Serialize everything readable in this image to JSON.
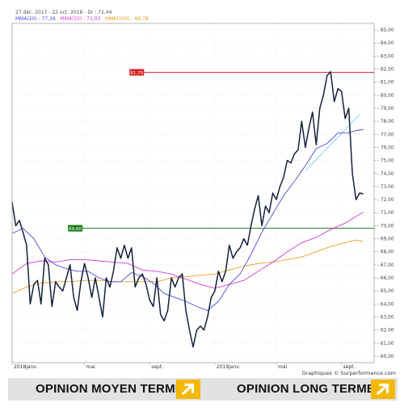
{
  "header": {
    "range": "27 déc. 2017 - 22 oct. 2018 - Dr : 72,44",
    "legend": [
      {
        "label": "MMA(20) : 77,36",
        "color": "#4b4bd2"
      },
      {
        "label": "MMA(50) : 71,03",
        "color": "#d43bd4"
      },
      {
        "label": "MMA(100) : 68,78",
        "color": "#e4a020"
      }
    ]
  },
  "credit": "Graphiques © Surperformance.com",
  "opinions": {
    "medium_label": "OPINION MOYEN TERME",
    "long_label": "OPINION LONG TERME",
    "medium_icon": "arrow-up-right-icon",
    "long_icon": "arrow-up-right-icon",
    "accent": "#f5b800"
  },
  "chart_data": {
    "type": "line",
    "ylim": [
      59.5,
      85.5
    ],
    "xlim": [
      0,
      100
    ],
    "yticks": [
      60,
      61,
      62,
      63,
      64,
      65,
      66,
      67,
      68,
      69,
      70,
      71,
      72,
      73,
      74,
      75,
      76,
      77,
      78,
      79,
      80,
      81,
      82,
      83,
      84,
      85
    ],
    "ytick_labels": [
      "60,00",
      "61,00",
      "62,00",
      "63,00",
      "64,00",
      "65,00",
      "66,00",
      "67,00",
      "68,00",
      "69,00",
      "70,00",
      "71,00",
      "72,00",
      "73,00",
      "74,00",
      "75,00",
      "76,00",
      "77,00",
      "78,00",
      "79,00",
      "80,00",
      "81,00",
      "82,00",
      "83,00",
      "84,00",
      "85,00"
    ],
    "xticks": [
      {
        "x": 0,
        "label": "2018janv."
      },
      {
        "x": 20,
        "label": "mai"
      },
      {
        "x": 38,
        "label": "sept."
      },
      {
        "x": 56,
        "label": "2019janv."
      },
      {
        "x": 73,
        "label": "mai"
      },
      {
        "x": 91,
        "label": "sept."
      }
    ],
    "grid": true,
    "hlines": [
      {
        "y": 81.75,
        "label": "81,75",
        "color": "#d42020",
        "x_start": 36
      },
      {
        "y": 69.8,
        "label": "69,80",
        "color": "#1a7a1a",
        "x_start": 19
      }
    ],
    "series": [
      {
        "color": "#14203a",
        "width": 1.5,
        "x": [
          0,
          1,
          2,
          3,
          4,
          5,
          6,
          7,
          8,
          9,
          10,
          11,
          12,
          13,
          14,
          15,
          16,
          17,
          18,
          19,
          20,
          21,
          22,
          23,
          24,
          25,
          26,
          27,
          28,
          29,
          30,
          31,
          32,
          33,
          34,
          35,
          36,
          37,
          38,
          39,
          40,
          41,
          42,
          43,
          44,
          45,
          46,
          47,
          48,
          49,
          50,
          51,
          52,
          53,
          54,
          55,
          56,
          57,
          58,
          59,
          60,
          61,
          62,
          63,
          64,
          65,
          66,
          67,
          68,
          69,
          70,
          71,
          72,
          73,
          74,
          75,
          76,
          77,
          78,
          79,
          80,
          81,
          82,
          83,
          84,
          85,
          86,
          87,
          88,
          89,
          90,
          91,
          92,
          93,
          94,
          95,
          96,
          97
        ],
        "values": [
          71.8,
          70,
          70.4,
          69.5,
          68.5,
          64,
          65.5,
          65.8,
          64,
          67.5,
          67,
          63.8,
          65.7,
          65.3,
          65,
          66,
          67,
          64.5,
          63.5,
          65.7,
          67.1,
          66,
          64.5,
          66,
          64.5,
          63,
          66,
          65.3,
          66.5,
          68.3,
          67.5,
          68.5,
          67.5,
          68.3,
          65.3,
          66,
          66.3,
          65.5,
          64.3,
          63.8,
          66,
          63.2,
          62.7,
          63.5,
          66,
          65.3,
          66,
          66.3,
          63.5,
          62,
          60.7,
          62,
          62.3,
          62,
          63,
          64.5,
          65,
          66.5,
          65.7,
          66.5,
          68.5,
          67.5,
          68,
          68.3,
          69,
          68.5,
          70,
          71.3,
          72.3,
          70,
          71.5,
          71,
          72.5,
          72,
          73,
          73.7,
          75,
          74.8,
          75.5,
          75.8,
          78,
          76,
          77.5,
          78.7,
          76.2,
          79,
          80,
          81.5,
          81.8,
          79.5,
          80.5,
          80.3,
          78.2,
          79,
          74,
          72,
          72.5,
          72.44
        ]
      },
      {
        "color": "#4b4bd2",
        "width": 0.9,
        "x": [
          0,
          3,
          6,
          9,
          12,
          15,
          18,
          21,
          24,
          27,
          30,
          33,
          36,
          39,
          42,
          45,
          48,
          51,
          54,
          57,
          60,
          63,
          66,
          69,
          72,
          75,
          78,
          81,
          84,
          87,
          90,
          93,
          95,
          97
        ],
        "values": [
          69.4,
          69.8,
          69,
          67.6,
          67,
          66.7,
          66.5,
          66.5,
          66,
          65.7,
          65.7,
          66.4,
          66.1,
          65.6,
          64.8,
          64.5,
          64.2,
          63.8,
          63.5,
          64.2,
          65.5,
          66.3,
          67.8,
          69.5,
          70.9,
          72.3,
          73.4,
          74.6,
          75.9,
          76.3,
          77.1,
          77.1,
          77.3,
          77.36
        ]
      },
      {
        "color": "#d43bd4",
        "width": 0.9,
        "x": [
          0,
          4,
          8,
          12,
          16,
          20,
          24,
          28,
          32,
          36,
          40,
          44,
          48,
          52,
          56,
          60,
          64,
          68,
          72,
          76,
          80,
          84,
          88,
          92,
          95,
          97
        ],
        "values": [
          66.3,
          67.1,
          67.3,
          67.2,
          67.4,
          67.4,
          67.3,
          67.2,
          67.1,
          66.6,
          66.5,
          66.3,
          65.9,
          65.5,
          65.2,
          65.5,
          65.8,
          66.5,
          67.2,
          68,
          68.7,
          69.1,
          69.7,
          70.2,
          70.7,
          71.03
        ]
      },
      {
        "color": "#e4a020",
        "width": 0.9,
        "x": [
          0,
          4,
          8,
          12,
          16,
          20,
          24,
          28,
          32,
          36,
          40,
          44,
          48,
          52,
          56,
          60,
          64,
          68,
          72,
          76,
          80,
          84,
          88,
          92,
          95,
          97
        ],
        "values": [
          64.8,
          65.3,
          65.6,
          65.7,
          65.7,
          65.8,
          65.8,
          65.7,
          65.7,
          65.7,
          65.7,
          66,
          66.1,
          66.2,
          66.3,
          66.6,
          66.9,
          67.1,
          67.2,
          67.4,
          67.6,
          68,
          68.4,
          68.7,
          68.9,
          68.78
        ]
      },
      {
        "color": "#7fd0f0",
        "width": 0.9,
        "x": [
          81,
          96
        ],
        "values": [
          74.2,
          78.5
        ]
      }
    ]
  }
}
